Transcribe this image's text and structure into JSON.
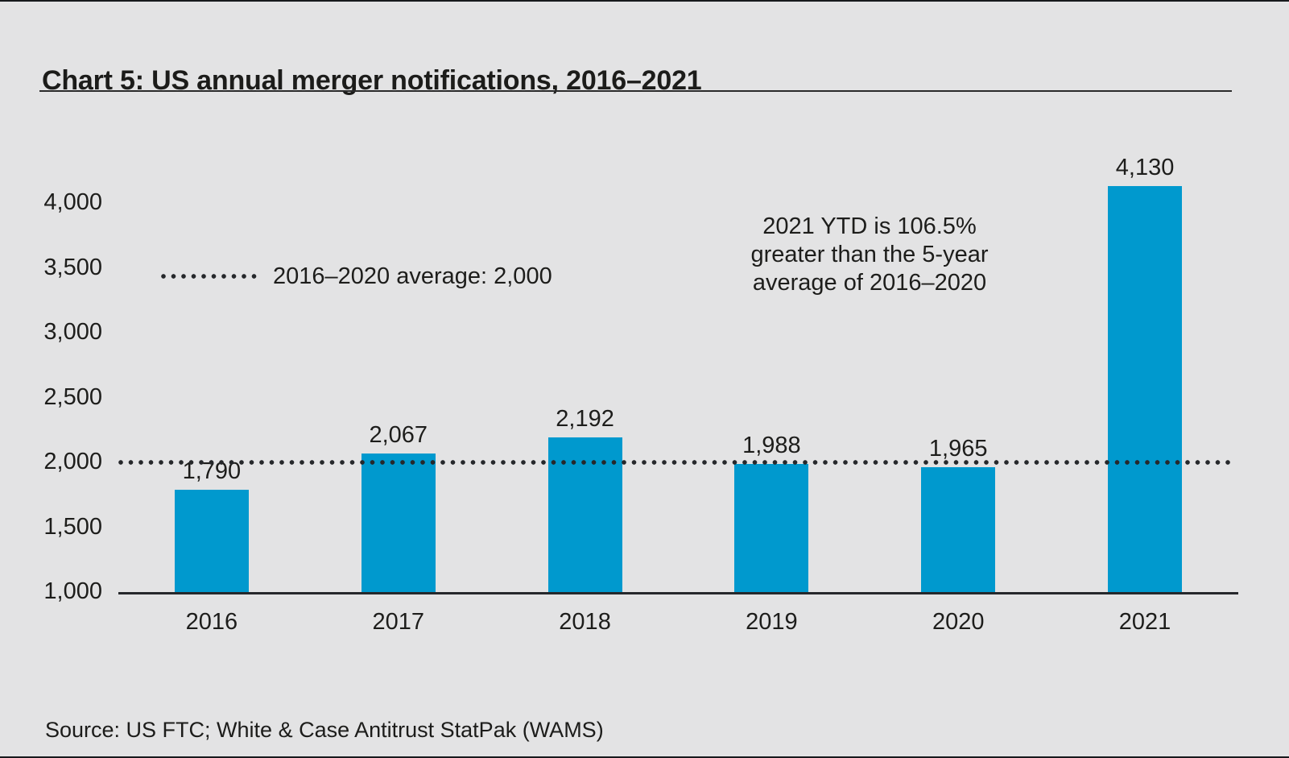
{
  "page": {
    "source": "Source: US FTC; White & Case Antitrust StatPak (WAMS)"
  },
  "colors": {
    "background": "#e3e3e4",
    "bar": "#0099ce",
    "text": "#1d1d1b",
    "axis": "#26282b",
    "frame": "#17191c"
  },
  "chart_data": {
    "type": "bar",
    "title": "Chart 5: US annual merger notifications, 2016–2021",
    "categories": [
      "2016",
      "2017",
      "2018",
      "2019",
      "2020",
      "2021"
    ],
    "values": [
      1790,
      2067,
      2192,
      1988,
      1965,
      4130
    ],
    "value_labels": [
      "1,790",
      "2,067",
      "2,192",
      "1,988",
      "1,965",
      "4,130"
    ],
    "xlabel": "",
    "ylabel": "",
    "ylim": [
      1000,
      4200
    ],
    "yticks": [
      1000,
      1500,
      2000,
      2500,
      3000,
      3500,
      4000
    ],
    "ytick_labels": [
      "1,000",
      "1,500",
      "2,000",
      "2,500",
      "3,000",
      "3,500",
      "4,000"
    ],
    "grid": false,
    "legend_position": "upper-left-inside",
    "average_line": {
      "value": 2000,
      "label": "2016–2020 average: 2,000"
    },
    "annotation_lines": [
      "2021 YTD is 106.5%",
      "greater than the 5-year",
      "average of 2016–2020"
    ]
  }
}
